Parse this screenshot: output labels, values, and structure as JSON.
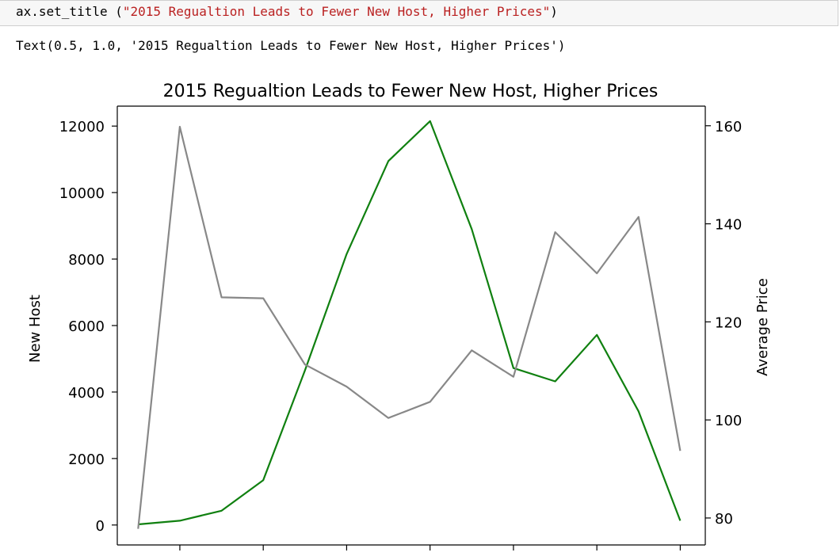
{
  "code_cell": {
    "call": "ax.set_title (",
    "argument": "\"2015 Regualtion Leads to Fewer New Host, Higher Prices\"",
    "close": ")"
  },
  "output": {
    "text": "Text(0.5, 1.0, '2015 Regualtion Leads to Fewer New Host, Higher Prices')"
  },
  "colors": {
    "new_host_line": "#108010",
    "average_price_line": "#888888",
    "axes": "#000000",
    "code_background": "#f7f7f7",
    "string_literal": "#ba2121"
  },
  "chart_data": {
    "type": "line",
    "title": "2015 Regualtion Leads to Fewer New Host, Higher Prices",
    "ylabel": "New Host",
    "ylabel_right": "Average Price",
    "xlabel": "",
    "x": [
      0,
      1,
      2,
      3,
      4,
      5,
      6,
      7,
      8,
      9,
      10,
      11,
      12,
      13
    ],
    "xlim": [
      -0.5,
      13.6
    ],
    "x_ticks": [
      1,
      3,
      5,
      7,
      9,
      11,
      13
    ],
    "ylim": [
      -600,
      12600
    ],
    "y_ticks": [
      0,
      2000,
      4000,
      6000,
      8000,
      10000,
      12000
    ],
    "y_tick_labels": [
      "0",
      "2000",
      "4000",
      "6000",
      "8000",
      "10000",
      "12000"
    ],
    "ylim_right": [
      74.5,
      164
    ],
    "y_ticks_right": [
      80,
      100,
      120,
      140,
      160
    ],
    "y_tick_labels_right": [
      "80",
      "100",
      "120",
      "140",
      "160"
    ],
    "grid": false,
    "series": [
      {
        "axis": "left",
        "color": "#108010",
        "values": [
          20,
          130,
          430,
          1350,
          4650,
          8150,
          10950,
          12150,
          8900,
          4720,
          4320,
          5720,
          3420,
          130
        ]
      },
      {
        "axis": "right",
        "color": "#888888",
        "values": [
          77.8,
          159.8,
          125.0,
          124.8,
          111.3,
          106.8,
          100.4,
          103.7,
          114.2,
          108.8,
          138.3,
          129.9,
          141.4,
          93.7
        ]
      }
    ]
  }
}
